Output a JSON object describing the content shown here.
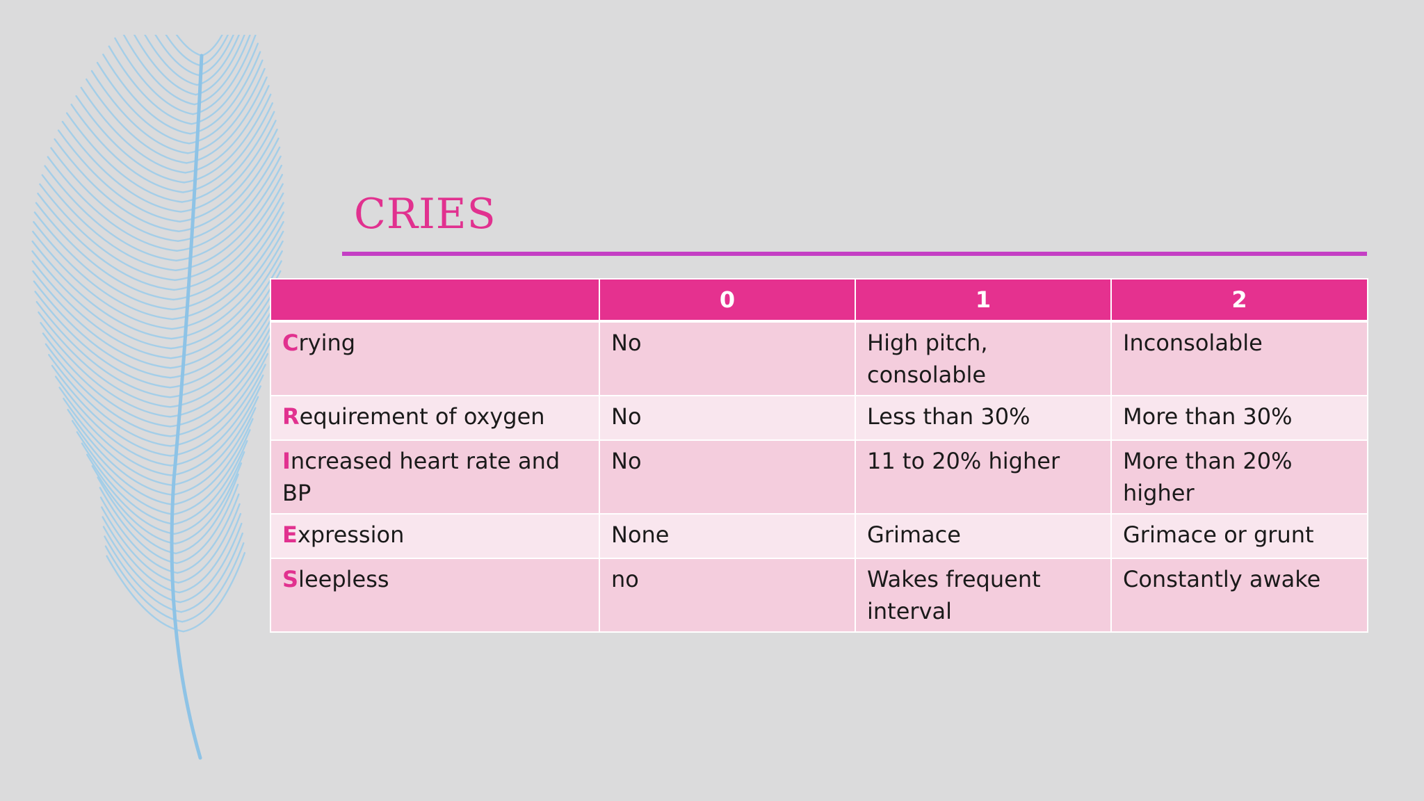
{
  "slide": {
    "title": "CRIES"
  },
  "table": {
    "headers": [
      "",
      "0",
      "1",
      "2"
    ],
    "rows": [
      {
        "initial": "C",
        "rest": "rying",
        "score0": "No",
        "score1": "High pitch, consolable",
        "score2": "Inconsolable"
      },
      {
        "initial": "R",
        "rest": "equirement of oxygen",
        "score0": "No",
        "score1": "Less than 30%",
        "score2": "More than 30%"
      },
      {
        "initial": "I",
        "rest": "ncreased heart rate and BP",
        "score0": "No",
        "score1": "11 to 20% higher",
        "score2": "More than 20% higher"
      },
      {
        "initial": "E",
        "rest": "xpression",
        "score0": "None",
        "score1": "Grimace",
        "score2": "Grimace or grunt"
      },
      {
        "initial": "S",
        "rest": "leepless",
        "score0": "no",
        "score1": "Wakes frequent interval",
        "score2": "Constantly awake"
      }
    ]
  },
  "colors": {
    "accent": "#e1318f",
    "header_bg": "#e5318f",
    "rule": "#c43fc4",
    "row_dark": "#f4cddd",
    "row_light": "#f9e6ee",
    "background": "#dbdbdc",
    "feather": "#9fcdea"
  },
  "decoration": {
    "background_icon": "feather-icon"
  }
}
